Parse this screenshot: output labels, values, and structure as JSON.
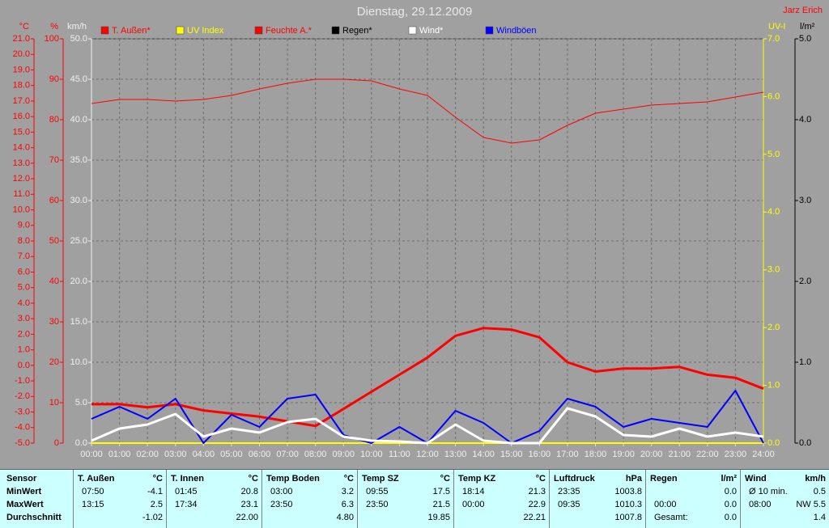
{
  "chart_data": {
    "type": "line",
    "title": "Dienstag, 29.12.2009",
    "author": "Jarz Erich",
    "x": [
      0,
      1,
      2,
      3,
      4,
      5,
      6,
      7,
      8,
      9,
      10,
      11,
      12,
      13,
      14,
      15,
      16,
      17,
      18,
      19,
      20,
      21,
      22,
      23,
      24
    ],
    "xlim": [
      0,
      24
    ],
    "xticks": [
      {
        "value": 0,
        "label": "00:00"
      },
      {
        "value": 1,
        "label": "01:00"
      },
      {
        "value": 2,
        "label": "02:00"
      },
      {
        "value": 3,
        "label": "03:00"
      },
      {
        "value": 4,
        "label": "04:00"
      },
      {
        "value": 5,
        "label": "05:00"
      },
      {
        "value": 6,
        "label": "06:00"
      },
      {
        "value": 7,
        "label": "07:00"
      },
      {
        "value": 8,
        "label": "08:00"
      },
      {
        "value": 9,
        "label": "09:00"
      },
      {
        "value": 10,
        "label": "10:00"
      },
      {
        "value": 11,
        "label": "11:00"
      },
      {
        "value": 12,
        "label": "12:00"
      },
      {
        "value": 13,
        "label": "13:00"
      },
      {
        "value": 14,
        "label": "14:00"
      },
      {
        "value": 15,
        "label": "15:00"
      },
      {
        "value": 16,
        "label": "16:00"
      },
      {
        "value": 17,
        "label": "17:00"
      },
      {
        "value": 18,
        "label": "18:00"
      },
      {
        "value": 19,
        "label": "19:00"
      },
      {
        "value": 20,
        "label": "20:00"
      },
      {
        "value": 21,
        "label": "21:00"
      },
      {
        "value": 22,
        "label": "22:00"
      },
      {
        "value": 23,
        "label": "23:00"
      },
      {
        "value": 24,
        "label": "24:00"
      }
    ],
    "grid": true,
    "grid_axis": 2,
    "y_axes": [
      {
        "label": "°C",
        "color": "#ff0000",
        "side": "left",
        "lim": [
          -5,
          21
        ],
        "ticks": [
          {
            "value": -5,
            "label": "-5.0"
          },
          {
            "value": -4,
            "label": "-4.0"
          },
          {
            "value": -3,
            "label": "-3.0"
          },
          {
            "value": -2,
            "label": "-2.0"
          },
          {
            "value": -1,
            "label": "-1.0"
          },
          {
            "value": 0,
            "label": "0.0"
          },
          {
            "value": 1,
            "label": "1.0"
          },
          {
            "value": 2,
            "label": "2.0"
          },
          {
            "value": 3,
            "label": "3.0"
          },
          {
            "value": 4,
            "label": "4.0"
          },
          {
            "value": 5,
            "label": "5.0"
          },
          {
            "value": 6,
            "label": "6.0"
          },
          {
            "value": 7,
            "label": "7.0"
          },
          {
            "value": 8,
            "label": "8.0"
          },
          {
            "value": 9,
            "label": "9.0"
          },
          {
            "value": 10,
            "label": "10.0"
          },
          {
            "value": 11,
            "label": "11.0"
          },
          {
            "value": 12,
            "label": "12.0"
          },
          {
            "value": 13,
            "label": "13.0"
          },
          {
            "value": 14,
            "label": "14.0"
          },
          {
            "value": 15,
            "label": "15.0"
          },
          {
            "value": 16,
            "label": "16.0"
          },
          {
            "value": 17,
            "label": "17.0"
          },
          {
            "value": 18,
            "label": "18.0"
          },
          {
            "value": 19,
            "label": "19.0"
          },
          {
            "value": 20,
            "label": "20.0"
          },
          {
            "value": 21,
            "label": "21.0"
          }
        ]
      },
      {
        "label": "%",
        "color": "#ff0000",
        "side": "left",
        "lim": [
          0,
          100
        ],
        "ticks": [
          0,
          10,
          20,
          30,
          40,
          50,
          60,
          70,
          80,
          90,
          100
        ]
      },
      {
        "label": "km/h",
        "color": "#f0f0f0",
        "side": "left",
        "lim": [
          0,
          50
        ],
        "ticks": [
          {
            "value": 0,
            "label": "0.0"
          },
          {
            "value": 5,
            "label": "5.0"
          },
          {
            "value": 10,
            "label": "10.0"
          },
          {
            "value": 15,
            "label": "15.0"
          },
          {
            "value": 20,
            "label": "20.0"
          },
          {
            "value": 25,
            "label": "25.0"
          },
          {
            "value": 30,
            "label": "30.0"
          },
          {
            "value": 35,
            "label": "35.0"
          },
          {
            "value": 40,
            "label": "40.0"
          },
          {
            "value": 45,
            "label": "45.0"
          },
          {
            "value": 50,
            "label": "50.0"
          }
        ]
      },
      {
        "label": "UV-I",
        "color": "#ffff00",
        "side": "right",
        "lim": [
          0,
          7
        ],
        "ticks": [
          {
            "value": 0,
            "label": "0.0"
          },
          {
            "value": 1,
            "label": "1.0"
          },
          {
            "value": 2,
            "label": "2.0"
          },
          {
            "value": 3,
            "label": "3.0"
          },
          {
            "value": 4,
            "label": "4.0"
          },
          {
            "value": 5,
            "label": "5.0"
          },
          {
            "value": 6,
            "label": "6.0"
          },
          {
            "value": 7,
            "label": "7.0"
          }
        ]
      },
      {
        "label": "l/m²",
        "color": "#000000",
        "side": "right",
        "lim": [
          0,
          5
        ],
        "ticks": [
          {
            "value": 0,
            "label": "0.0"
          },
          {
            "value": 1,
            "label": "1.0"
          },
          {
            "value": 2,
            "label": "2.0"
          },
          {
            "value": 3,
            "label": "3.0"
          },
          {
            "value": 4,
            "label": "4.0"
          },
          {
            "value": 5,
            "label": "5.0"
          }
        ]
      }
    ],
    "series": [
      {
        "name": "T. Außen*",
        "color": "#ff0000",
        "axis": 0,
        "line_width": 3,
        "values": [
          -2.5,
          -2.5,
          -2.7,
          -2.5,
          -2.9,
          -3.1,
          -3.3,
          -3.6,
          -3.9,
          -2.8,
          -1.7,
          -0.6,
          0.5,
          1.9,
          2.4,
          2.3,
          1.8,
          0.2,
          -0.4,
          -0.2,
          -0.2,
          -0.1,
          -0.6,
          -0.8,
          -1.5
        ]
      },
      {
        "name": "UV Index",
        "color": "#ffff00",
        "axis": 3,
        "line_width": 2,
        "values": [
          0,
          0,
          0,
          0,
          0,
          0,
          0,
          0,
          0,
          0,
          0,
          0,
          0,
          0,
          0,
          0,
          0,
          0,
          0,
          0,
          0,
          0,
          0,
          0,
          0
        ]
      },
      {
        "name": "Feuchte A.*",
        "color": "#ff0000",
        "axis": 1,
        "line_width": 1,
        "values": [
          84,
          85,
          85,
          84.6,
          85,
          86,
          87.6,
          89,
          90,
          90,
          89.6,
          87.6,
          86,
          80.6,
          75.6,
          74.2,
          75,
          78.6,
          81.6,
          82.6,
          83.6,
          84,
          84.4,
          85.6,
          86.8
        ]
      },
      {
        "name": "Regen*",
        "color": "#000000",
        "axis": 4,
        "line_width": 1,
        "values": [
          0,
          0,
          0,
          0,
          0,
          0,
          0,
          0,
          0,
          0,
          0,
          0,
          0,
          0,
          0,
          0,
          0,
          0,
          0,
          0,
          0,
          0,
          0,
          0,
          0
        ]
      },
      {
        "name": "Wind*",
        "color": "#ffffff",
        "axis": 2,
        "line_width": 3,
        "values": [
          0.3,
          1.8,
          2.3,
          3.6,
          0.8,
          1.8,
          1.3,
          2.6,
          3.0,
          0.8,
          0.3,
          0.2,
          0,
          2.3,
          0.3,
          0,
          0,
          4.3,
          3.3,
          1.0,
          0.8,
          1.8,
          0.8,
          1.3,
          0.8
        ]
      },
      {
        "name": "Windböen",
        "color": "#0000ff",
        "axis": 2,
        "line_width": 2,
        "values": [
          3.0,
          4.5,
          3.0,
          5.5,
          0,
          3.5,
          2.0,
          5.5,
          6.0,
          1.0,
          0,
          2.0,
          0,
          4.0,
          2.5,
          0,
          1.5,
          5.5,
          4.5,
          2.0,
          3.0,
          2.5,
          2.0,
          6.5,
          0
        ]
      }
    ]
  },
  "table": {
    "row_labels": [
      "Sensor",
      "MinWert",
      "MaxWert",
      "Durchschnitt"
    ],
    "panels": [
      {
        "name": "T. Außen",
        "unit": "°C",
        "rows": [
          {
            "left": "07:50",
            "right": "-4.1"
          },
          {
            "left": "13:15",
            "right": "2.5"
          },
          {
            "right": "-1.02"
          }
        ]
      },
      {
        "name": "T. Innen",
        "unit": "°C",
        "rows": [
          {
            "left": "01:45",
            "right": "20.8"
          },
          {
            "left": "17:34",
            "right": "23.1"
          },
          {
            "right": "22.00"
          }
        ]
      },
      {
        "name": "Temp Boden",
        "unit": "°C",
        "rows": [
          {
            "left": "03:00",
            "right": "3.2"
          },
          {
            "left": "23:50",
            "right": "6.3"
          },
          {
            "right": "4.80"
          }
        ]
      },
      {
        "name": "Temp SZ",
        "unit": "°C",
        "rows": [
          {
            "left": "09:55",
            "right": "17.5"
          },
          {
            "left": "23:50",
            "right": "21.5"
          },
          {
            "right": "19.85"
          }
        ]
      },
      {
        "name": "Temp KZ",
        "unit": "°C",
        "rows": [
          {
            "left": "18:14",
            "right": "21.3"
          },
          {
            "left": "00:00",
            "right": "22.9"
          },
          {
            "right": "22.21"
          }
        ]
      },
      {
        "name": "Luftdruck",
        "unit": "hPa",
        "rows": [
          {
            "left": "23:35",
            "right": "1003.8"
          },
          {
            "left": "09:35",
            "right": "1010.3"
          },
          {
            "right": "1007.8"
          }
        ]
      },
      {
        "name": "Regen",
        "unit": "l/m²",
        "rows": [
          {
            "right": "0.0"
          },
          {
            "left": "00:00",
            "right": "0.0"
          },
          {
            "left": "Gesamt:",
            "right": "0.0"
          }
        ]
      },
      {
        "name": "Wind",
        "unit": "km/h",
        "rows": [
          {
            "left": "Ø 10 min.",
            "right": "0.5"
          },
          {
            "left": "08:00",
            "right": "NW 5.5"
          },
          {
            "right": "1.4"
          }
        ]
      }
    ]
  }
}
